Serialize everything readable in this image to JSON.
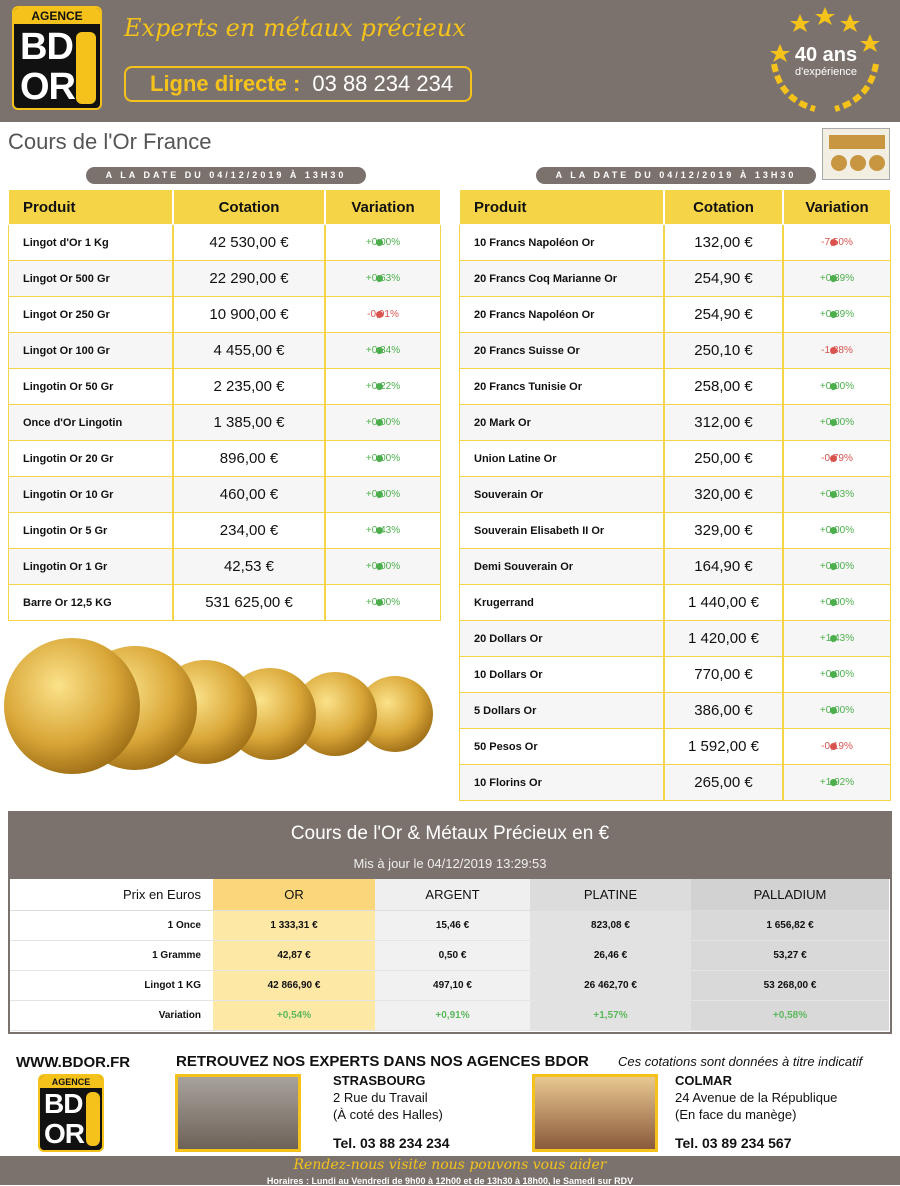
{
  "header": {
    "logo": {
      "agency": "AGENCE",
      "top": "BD",
      "bottom": "OR"
    },
    "tagline": "Experts en métaux précieux",
    "hotline_label": "Ligne directe :",
    "hotline_number": "03 88 234 234",
    "badge": {
      "years": "40 ans",
      "experience": "d'expérience"
    }
  },
  "page_title": "Cours de l'Or France",
  "tables": [
    {
      "date": "A LA DATE DU 04/12/2019 À 13H30",
      "columns": [
        "Produit",
        "Cotation",
        "Variation"
      ],
      "rows": [
        [
          "Lingot d'Or 1 Kg",
          "42 530,00 €",
          "+0,00%"
        ],
        [
          "Lingot Or 500 Gr",
          "22 290,00 €",
          "+0,63%"
        ],
        [
          "Lingot Or 250 Gr",
          "10 900,00 €",
          "-0,91%"
        ],
        [
          "Lingot Or 100 Gr",
          "4 455,00 €",
          "+0,34%"
        ],
        [
          "Lingotin Or 50 Gr",
          "2 235,00 €",
          "+0,22%"
        ],
        [
          "Once d'Or Lingotin",
          "1 385,00 €",
          "+0,00%"
        ],
        [
          "Lingotin Or 20 Gr",
          "896,00 €",
          "+0,00%"
        ],
        [
          "Lingotin Or 10 Gr",
          "460,00 €",
          "+0,00%"
        ],
        [
          "Lingotin Or 5 Gr",
          "234,00 €",
          "+0,43%"
        ],
        [
          "Lingotin Or 1 Gr",
          "42,53 €",
          "+0,00%"
        ],
        [
          "Barre Or 12,5 KG",
          "531 625,00 €",
          "+0,00%"
        ]
      ]
    },
    {
      "date": "A LA DATE DU 04/12/2019 À 13H30",
      "columns": [
        "Produit",
        "Cotation",
        "Variation"
      ],
      "rows": [
        [
          "10 Francs Napoléon Or",
          "132,00 €",
          "-7,50%"
        ],
        [
          "20 Francs Coq Marianne Or",
          "254,90 €",
          "+0,39%"
        ],
        [
          "20 Francs Napoléon Or",
          "254,90 €",
          "+0,39%"
        ],
        [
          "20 Francs Suisse Or",
          "250,10 €",
          "-1,88%"
        ],
        [
          "20 Francs Tunisie Or",
          "258,00 €",
          "+0,00%"
        ],
        [
          "20 Mark Or",
          "312,00 €",
          "+0,00%"
        ],
        [
          "Union Latine Or",
          "250,00 €",
          "-0,79%"
        ],
        [
          "Souverain Or",
          "320,00 €",
          "+0,03%"
        ],
        [
          "Souverain Elisabeth II Or",
          "329,00 €",
          "+0,00%"
        ],
        [
          "Demi Souverain Or",
          "164,90 €",
          "+0,00%"
        ],
        [
          "Krugerrand",
          "1 440,00 €",
          "+0,00%"
        ],
        [
          "20 Dollars Or",
          "1 420,00 €",
          "+1,43%"
        ],
        [
          "10 Dollars Or",
          "770,00 €",
          "+0,00%"
        ],
        [
          "5 Dollars Or",
          "386,00 €",
          "+0,00%"
        ],
        [
          "50 Pesos Or",
          "1 592,00 €",
          "-0,19%"
        ],
        [
          "10 Florins Or",
          "265,00 €",
          "+1,92%"
        ]
      ]
    }
  ],
  "metals": {
    "title": "Cours de l'Or & Métaux Précieux en €",
    "updated": "Mis à jour le 04/12/2019 13:29:53",
    "columns": [
      "Prix en Euros",
      "OR",
      "ARGENT",
      "PLATINE",
      "PALLADIUM"
    ],
    "rows": [
      [
        "1 Once",
        "1 333,31 €",
        "15,46 €",
        "823,08 €",
        "1 656,82 €"
      ],
      [
        "1 Gramme",
        "42,87 €",
        "0,50 €",
        "26,46 €",
        "53,27 €"
      ],
      [
        "Lingot 1 KG",
        "42 866,90 €",
        "497,10 €",
        "26 462,70 €",
        "53 268,00 €"
      ],
      [
        "Variation",
        "+0,54%",
        "+0,91%",
        "+1,57%",
        "+0,58%"
      ]
    ]
  },
  "footer": {
    "website": "WWW.BDOR.FR",
    "headline": "RETROUVEZ NOS EXPERTS DANS NOS AGENCES BDOR",
    "disclaimer": "Ces cotations sont données à titre indicatif",
    "agencies": [
      {
        "city": "STRASBOURG",
        "address": [
          "2 Rue du Travail",
          "(À coté des Halles)"
        ],
        "phone": "Tel. 03 88 234 234"
      },
      {
        "city": "COLMAR",
        "address": [
          "24 Avenue de la République",
          "(En face du manège)"
        ],
        "phone": "Tel. 03 89 234 567"
      }
    ],
    "tagline": "Rendez-nous visite nous pouvons vous aider",
    "hours": "Horaires : Lundi au Vendredi de 9h00 à 12h00 et de 13h30 à 18h00, le Samedi sur RDV"
  }
}
